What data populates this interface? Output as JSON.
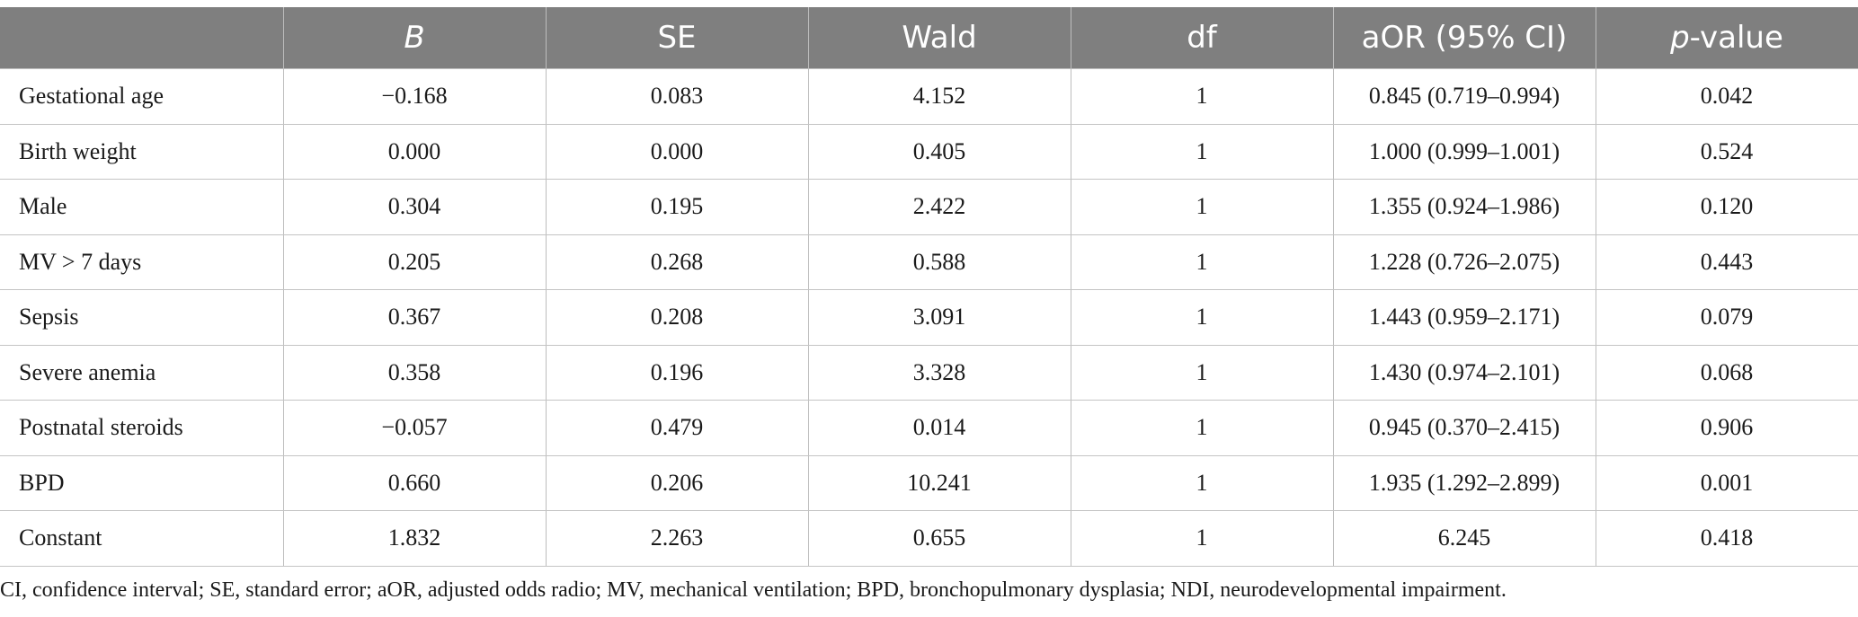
{
  "table": {
    "headers": [
      {
        "text": "",
        "italic": false
      },
      {
        "text": "B",
        "italic": true
      },
      {
        "text": "SE",
        "italic": false
      },
      {
        "text": "Wald",
        "italic": false
      },
      {
        "text": "df",
        "italic": false
      },
      {
        "text": "aOR (95% CI)",
        "italic": false
      },
      {
        "text": "p",
        "italic": true,
        "suffix": "-value"
      }
    ],
    "rows": [
      [
        "Gestational age",
        "−0.168",
        "0.083",
        "4.152",
        "1",
        "0.845 (0.719–0.994)",
        "0.042"
      ],
      [
        "Birth weight",
        "0.000",
        "0.000",
        "0.405",
        "1",
        "1.000 (0.999–1.001)",
        "0.524"
      ],
      [
        "Male",
        "0.304",
        "0.195",
        "2.422",
        "1",
        "1.355 (0.924–1.986)",
        "0.120"
      ],
      [
        "MV > 7 days",
        "0.205",
        "0.268",
        "0.588",
        "1",
        "1.228 (0.726–2.075)",
        "0.443"
      ],
      [
        "Sepsis",
        "0.367",
        "0.208",
        "3.091",
        "1",
        "1.443 (0.959–2.171)",
        "0.079"
      ],
      [
        "Severe anemia",
        "0.358",
        "0.196",
        "3.328",
        "1",
        "1.430 (0.974–2.101)",
        "0.068"
      ],
      [
        "Postnatal steroids",
        "−0.057",
        "0.479",
        "0.014",
        "1",
        "0.945 (0.370–2.415)",
        "0.906"
      ],
      [
        "BPD",
        "0.660",
        "0.206",
        "10.241",
        "1",
        "1.935 (1.292–2.899)",
        "0.001"
      ],
      [
        "Constant",
        "1.832",
        "2.263",
        "0.655",
        "1",
        "6.245",
        "0.418"
      ]
    ]
  },
  "footnote": "CI, confidence interval; SE, standard error; aOR, adjusted odds radio; MV, mechanical ventilation; BPD, bronchopulmonary dysplasia; NDI, neurodevelopmental impairment.",
  "colors": {
    "header_bg": "#7f7f7f",
    "header_text": "#ffffff",
    "rule": "#c4c4c4"
  }
}
